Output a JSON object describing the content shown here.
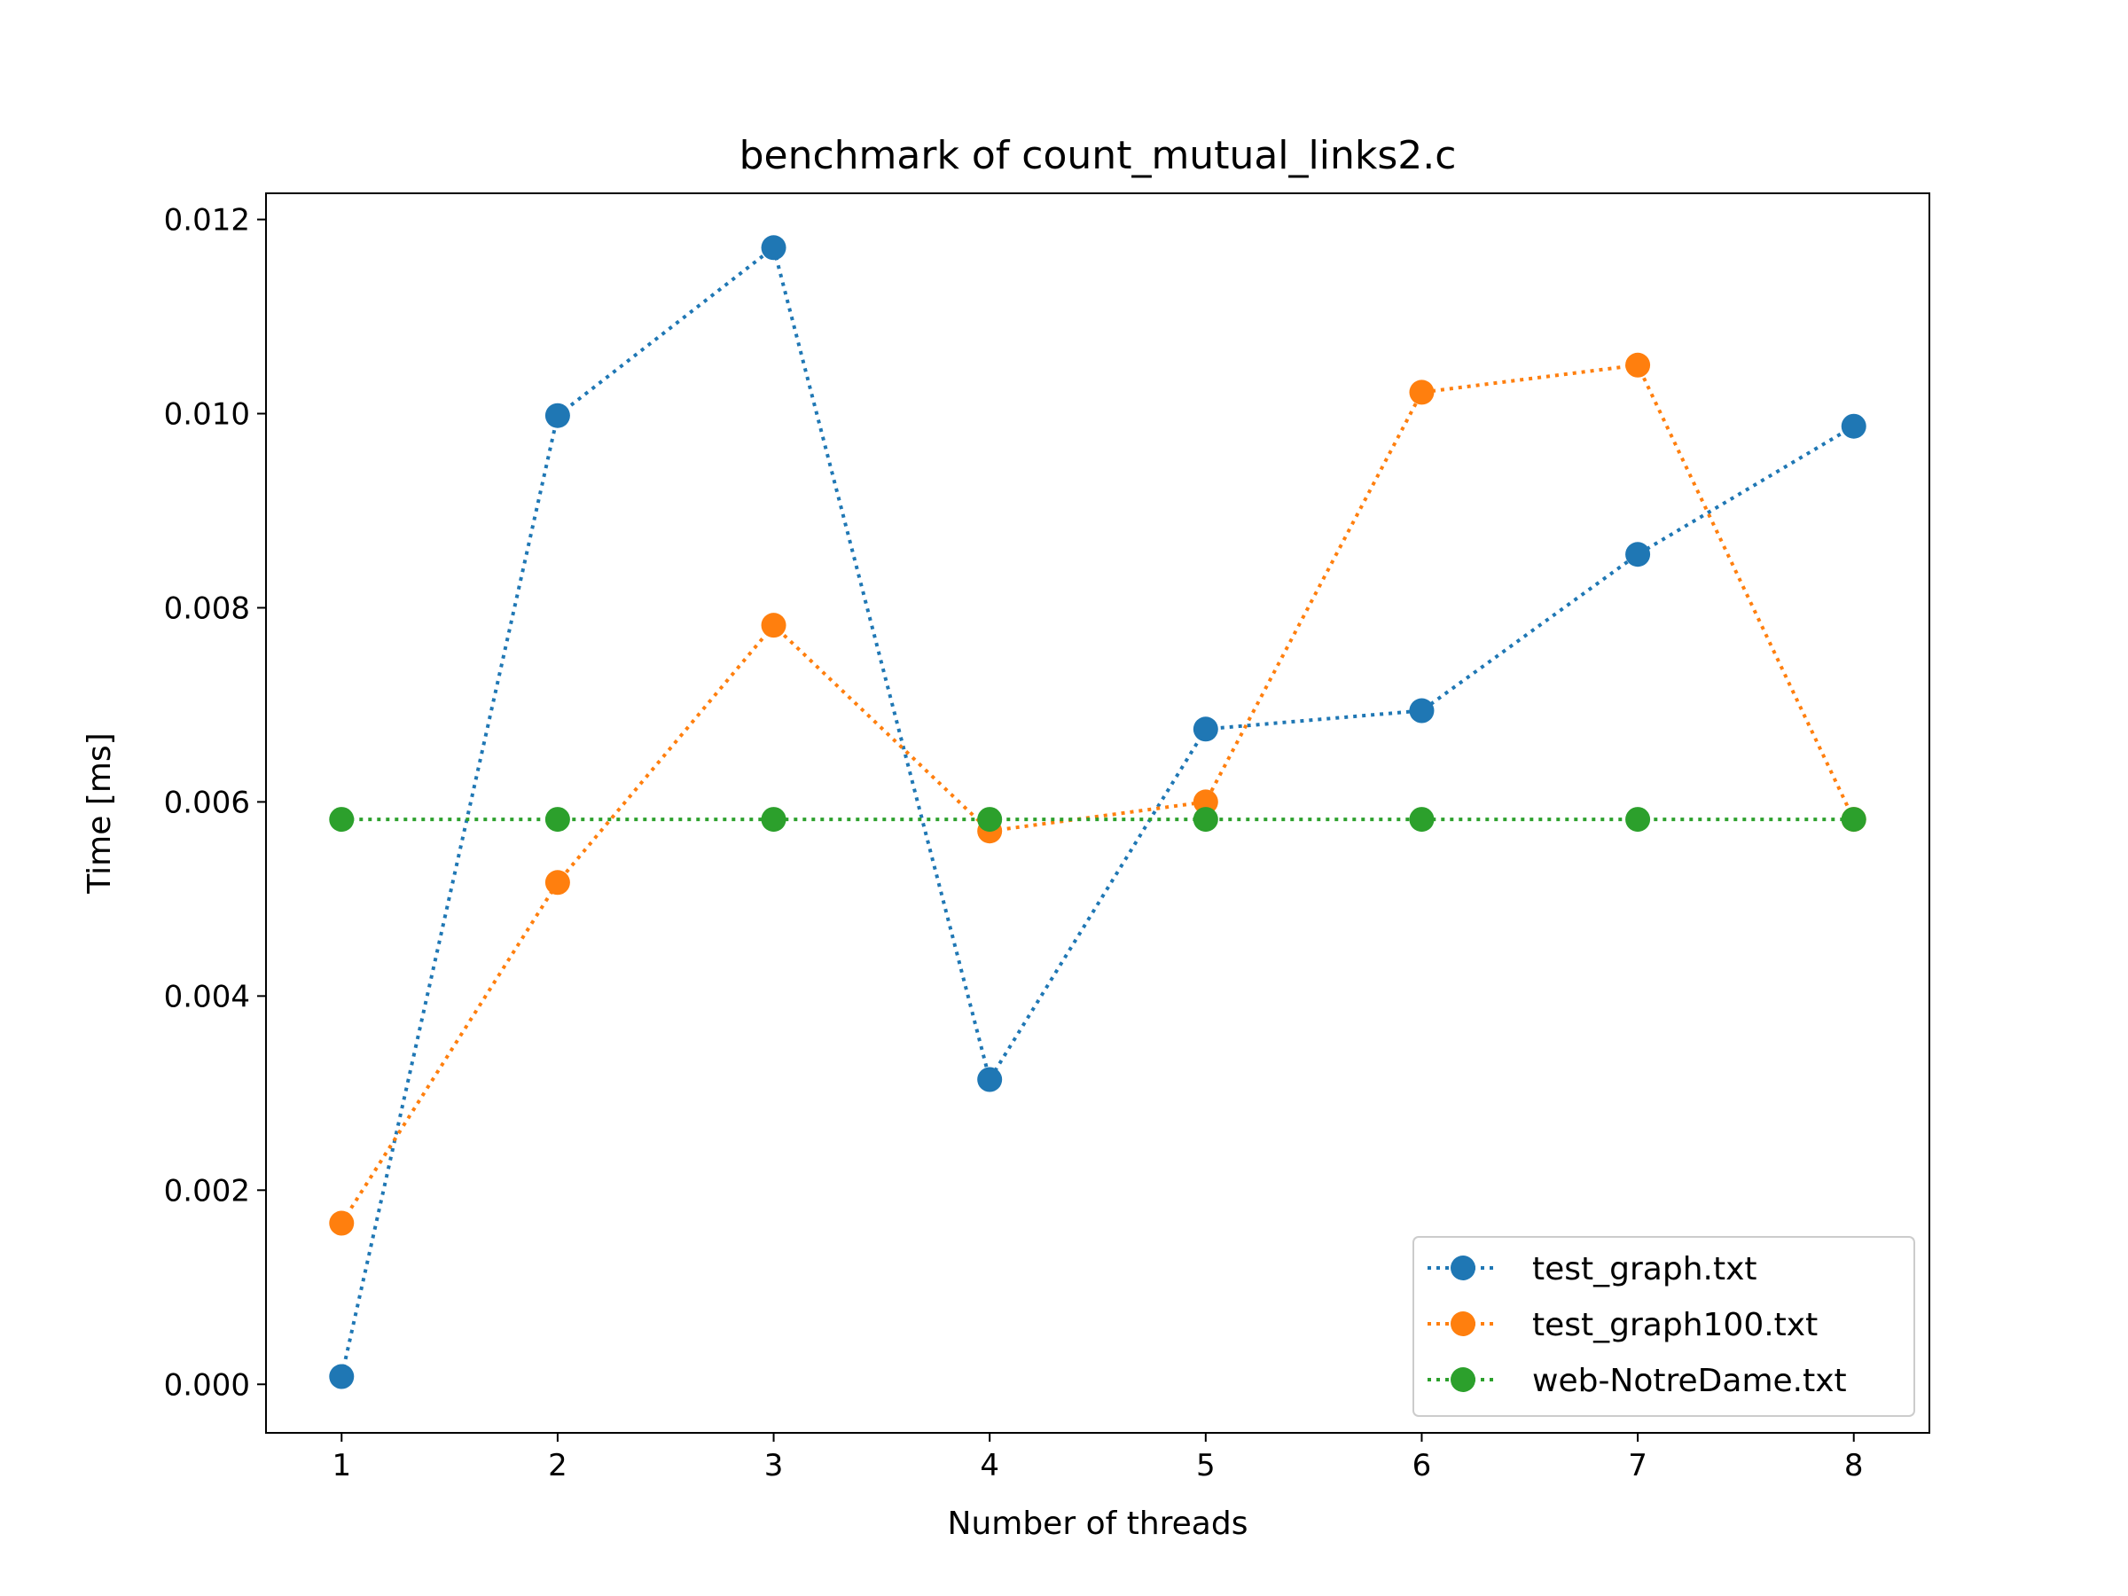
{
  "chart_data": {
    "type": "line",
    "title": "benchmark of count_mutual_links2.c",
    "xlabel": "Number of threads",
    "ylabel": "Time [ms]",
    "x": [
      1,
      2,
      3,
      4,
      5,
      6,
      7,
      8
    ],
    "xlim": [
      0.65,
      8.35
    ],
    "ylim": [
      -0.0005,
      0.01227
    ],
    "xticks": [
      "1",
      "2",
      "3",
      "4",
      "5",
      "6",
      "7",
      "8"
    ],
    "yticks": [
      "0.000",
      "0.002",
      "0.004",
      "0.006",
      "0.008",
      "0.010",
      "0.012"
    ],
    "grid": false,
    "legend_position": "lower-right",
    "line_style": "dotted",
    "marker": "circle",
    "series": [
      {
        "name": "test_graph.txt",
        "color": "#1f77b4",
        "values": [
          8e-05,
          0.00998,
          0.01171,
          0.00314,
          0.00675,
          0.00694,
          0.00855,
          0.00987
        ]
      },
      {
        "name": "test_graph100.txt",
        "color": "#ff7f0e",
        "values": [
          0.00166,
          0.00517,
          0.00782,
          0.0057,
          0.006,
          0.01022,
          0.0105,
          0.00582
        ]
      },
      {
        "name": "web-NotreDame.txt",
        "color": "#2ca02c",
        "values": [
          0.00582,
          0.00582,
          0.00582,
          0.00582,
          0.00582,
          0.00582,
          0.00582,
          0.00582
        ]
      }
    ]
  }
}
